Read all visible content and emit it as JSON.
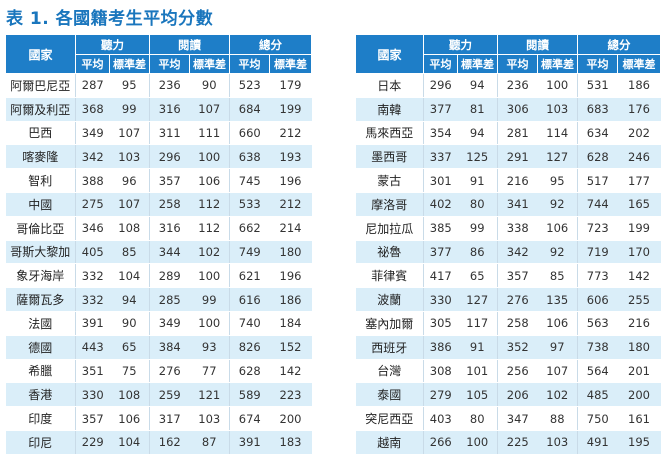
{
  "title": "表 1. 各國籍考生平均分數",
  "headers": {
    "country": "國家",
    "listening": "聽力",
    "reading": "閱讀",
    "total": "總分",
    "mean": "平均",
    "sd": "標準差"
  },
  "left_rows": [
    {
      "country": "阿爾巴尼亞",
      "l_mean": "287",
      "l_sd": "95",
      "r_mean": "236",
      "r_sd": "90",
      "t_mean": "523",
      "t_sd": "179"
    },
    {
      "country": "阿爾及利亞",
      "l_mean": "368",
      "l_sd": "99",
      "r_mean": "316",
      "r_sd": "107",
      "t_mean": "684",
      "t_sd": "199"
    },
    {
      "country": "巴西",
      "l_mean": "349",
      "l_sd": "107",
      "r_mean": "311",
      "r_sd": "111",
      "t_mean": "660",
      "t_sd": "212"
    },
    {
      "country": "喀麥隆",
      "l_mean": "342",
      "l_sd": "103",
      "r_mean": "296",
      "r_sd": "100",
      "t_mean": "638",
      "t_sd": "193"
    },
    {
      "country": "智利",
      "l_mean": "388",
      "l_sd": "96",
      "r_mean": "357",
      "r_sd": "106",
      "t_mean": "745",
      "t_sd": "196"
    },
    {
      "country": "中國",
      "l_mean": "275",
      "l_sd": "107",
      "r_mean": "258",
      "r_sd": "112",
      "t_mean": "533",
      "t_sd": "212"
    },
    {
      "country": "哥倫比亞",
      "l_mean": "346",
      "l_sd": "108",
      "r_mean": "316",
      "r_sd": "112",
      "t_mean": "662",
      "t_sd": "214"
    },
    {
      "country": "哥斯大黎加",
      "l_mean": "405",
      "l_sd": "85",
      "r_mean": "344",
      "r_sd": "102",
      "t_mean": "749",
      "t_sd": "180"
    },
    {
      "country": "象牙海岸",
      "l_mean": "332",
      "l_sd": "104",
      "r_mean": "289",
      "r_sd": "100",
      "t_mean": "621",
      "t_sd": "196"
    },
    {
      "country": "薩爾瓦多",
      "l_mean": "332",
      "l_sd": "94",
      "r_mean": "285",
      "r_sd": "99",
      "t_mean": "616",
      "t_sd": "186"
    },
    {
      "country": "法國",
      "l_mean": "391",
      "l_sd": "90",
      "r_mean": "349",
      "r_sd": "100",
      "t_mean": "740",
      "t_sd": "184"
    },
    {
      "country": "德國",
      "l_mean": "443",
      "l_sd": "65",
      "r_mean": "384",
      "r_sd": "93",
      "t_mean": "826",
      "t_sd": "152"
    },
    {
      "country": "希臘",
      "l_mean": "351",
      "l_sd": "75",
      "r_mean": "276",
      "r_sd": "77",
      "t_mean": "628",
      "t_sd": "142"
    },
    {
      "country": "香港",
      "l_mean": "330",
      "l_sd": "108",
      "r_mean": "259",
      "r_sd": "121",
      "t_mean": "589",
      "t_sd": "223"
    },
    {
      "country": "印度",
      "l_mean": "357",
      "l_sd": "106",
      "r_mean": "317",
      "r_sd": "103",
      "t_mean": "674",
      "t_sd": "200"
    },
    {
      "country": "印尼",
      "l_mean": "229",
      "l_sd": "104",
      "r_mean": "162",
      "r_sd": "87",
      "t_mean": "391",
      "t_sd": "183"
    }
  ],
  "right_rows": [
    {
      "country": "日本",
      "l_mean": "296",
      "l_sd": "94",
      "r_mean": "236",
      "r_sd": "100",
      "t_mean": "531",
      "t_sd": "186"
    },
    {
      "country": "南韓",
      "l_mean": "377",
      "l_sd": "81",
      "r_mean": "306",
      "r_sd": "103",
      "t_mean": "683",
      "t_sd": "176"
    },
    {
      "country": "馬來西亞",
      "l_mean": "354",
      "l_sd": "94",
      "r_mean": "281",
      "r_sd": "114",
      "t_mean": "634",
      "t_sd": "202"
    },
    {
      "country": "墨西哥",
      "l_mean": "337",
      "l_sd": "125",
      "r_mean": "291",
      "r_sd": "127",
      "t_mean": "628",
      "t_sd": "246"
    },
    {
      "country": "蒙古",
      "l_mean": "301",
      "l_sd": "91",
      "r_mean": "216",
      "r_sd": "95",
      "t_mean": "517",
      "t_sd": "177"
    },
    {
      "country": "摩洛哥",
      "l_mean": "402",
      "l_sd": "80",
      "r_mean": "341",
      "r_sd": "92",
      "t_mean": "744",
      "t_sd": "165"
    },
    {
      "country": "尼加拉瓜",
      "l_mean": "385",
      "l_sd": "99",
      "r_mean": "338",
      "r_sd": "106",
      "t_mean": "723",
      "t_sd": "199"
    },
    {
      "country": "祕魯",
      "l_mean": "377",
      "l_sd": "86",
      "r_mean": "342",
      "r_sd": "92",
      "t_mean": "719",
      "t_sd": "170"
    },
    {
      "country": "菲律賓",
      "l_mean": "417",
      "l_sd": "65",
      "r_mean": "357",
      "r_sd": "85",
      "t_mean": "773",
      "t_sd": "142"
    },
    {
      "country": "波蘭",
      "l_mean": "330",
      "l_sd": "127",
      "r_mean": "276",
      "r_sd": "135",
      "t_mean": "606",
      "t_sd": "255"
    },
    {
      "country": "塞內加爾",
      "l_mean": "305",
      "l_sd": "117",
      "r_mean": "258",
      "r_sd": "106",
      "t_mean": "563",
      "t_sd": "216"
    },
    {
      "country": "西班牙",
      "l_mean": "386",
      "l_sd": "91",
      "r_mean": "352",
      "r_sd": "97",
      "t_mean": "738",
      "t_sd": "180"
    },
    {
      "country": "台灣",
      "l_mean": "308",
      "l_sd": "101",
      "r_mean": "256",
      "r_sd": "107",
      "t_mean": "564",
      "t_sd": "201"
    },
    {
      "country": "泰國",
      "l_mean": "279",
      "l_sd": "105",
      "r_mean": "206",
      "r_sd": "102",
      "t_mean": "485",
      "t_sd": "200"
    },
    {
      "country": "突尼西亞",
      "l_mean": "403",
      "l_sd": "80",
      "r_mean": "347",
      "r_sd": "88",
      "t_mean": "750",
      "t_sd": "161"
    },
    {
      "country": "越南",
      "l_mean": "266",
      "l_sd": "100",
      "r_mean": "225",
      "r_sd": "103",
      "t_mean": "491",
      "t_sd": "195"
    }
  ]
}
